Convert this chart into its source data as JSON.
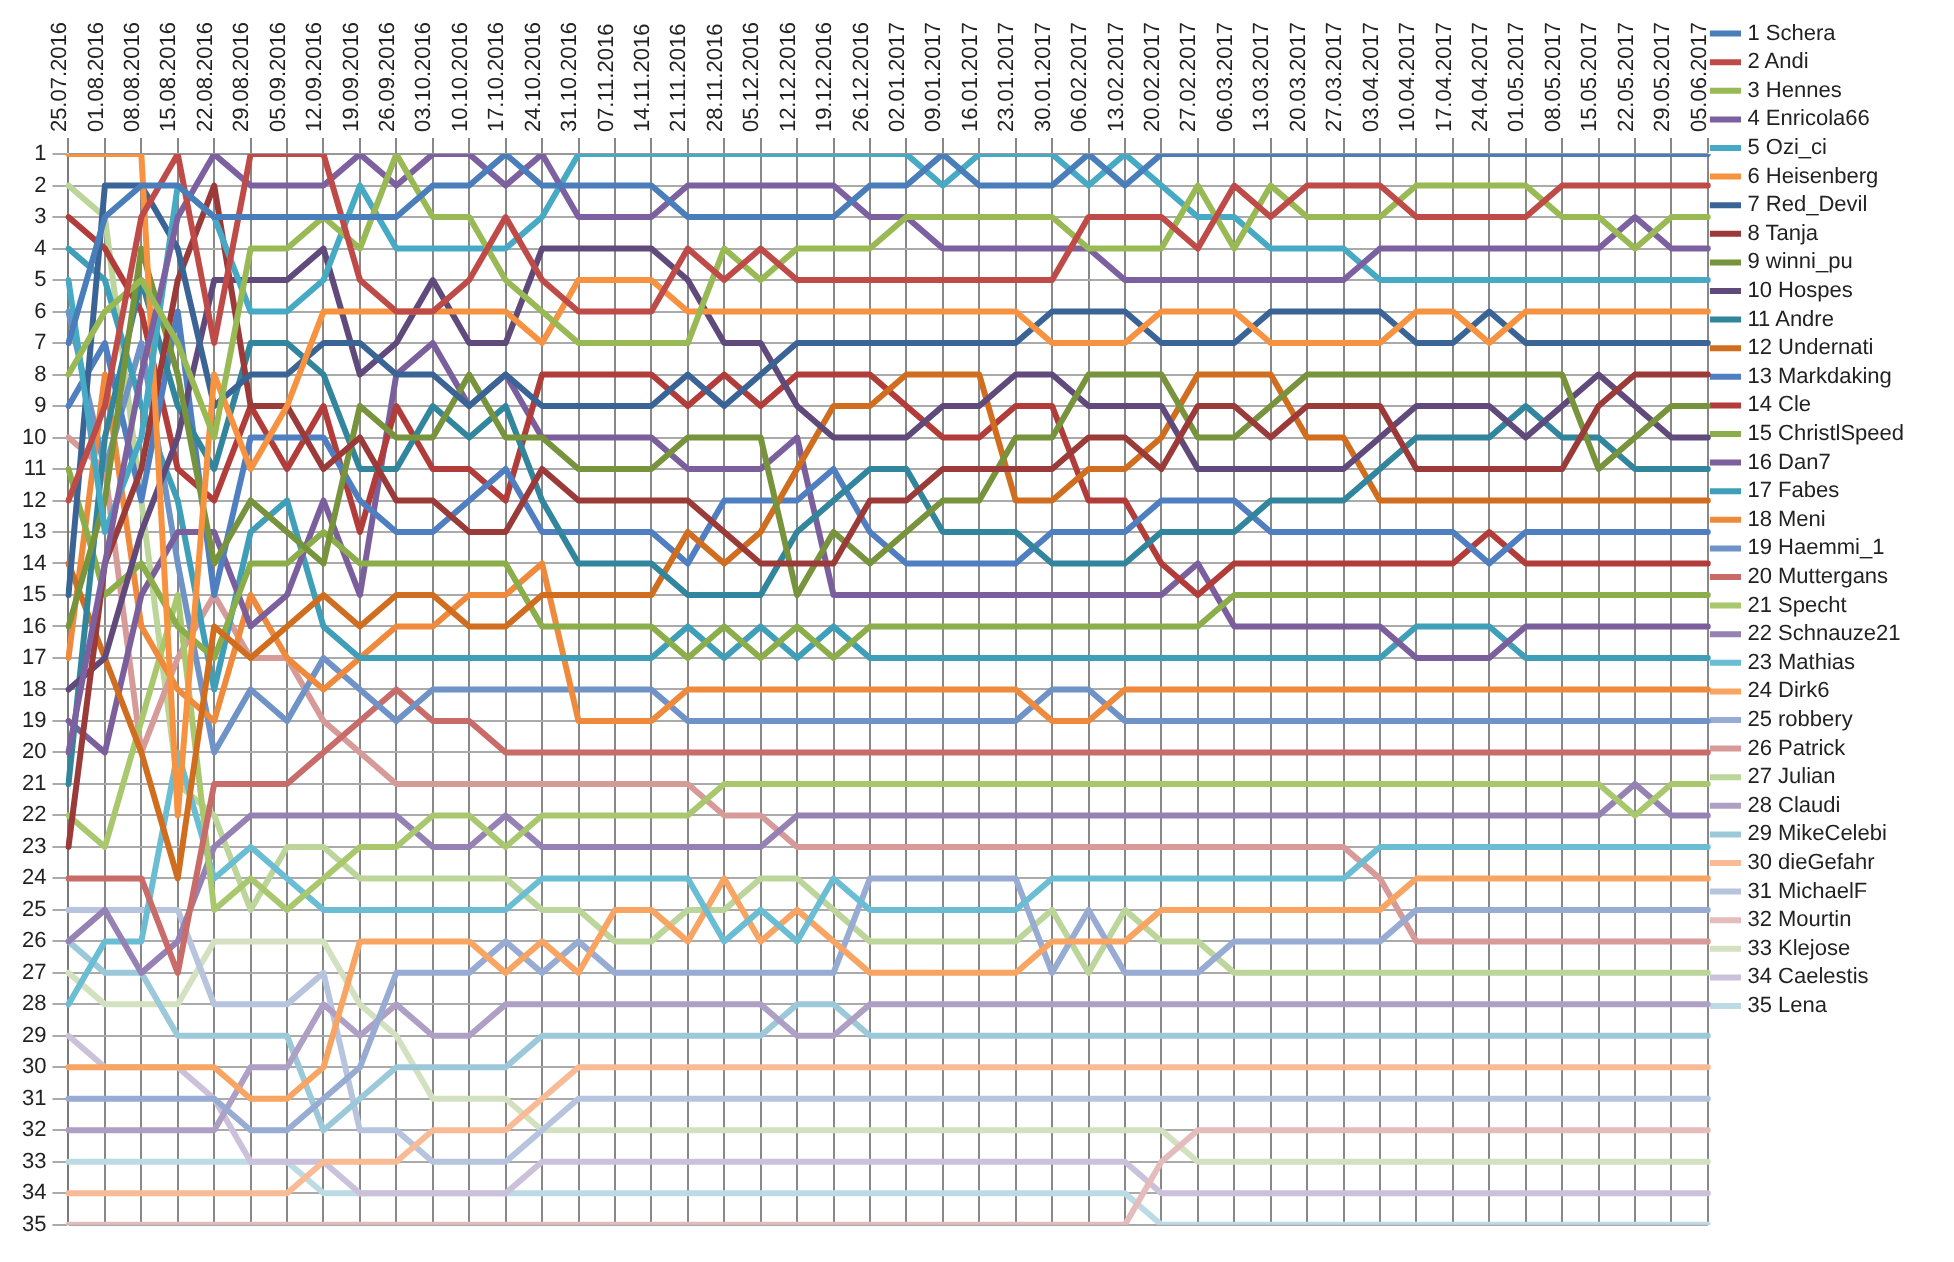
{
  "chart_data": {
    "type": "line",
    "categories": [
      "25.07.2016",
      "01.08.2016",
      "08.08.2016",
      "15.08.2016",
      "22.08.2016",
      "29.08.2016",
      "05.09.2016",
      "12.09.2016",
      "19.09.2016",
      "26.09.2016",
      "03.10.2016",
      "10.10.2016",
      "17.10.2016",
      "24.10.2016",
      "31.10.2016",
      "07.11.2016",
      "14.11.2016",
      "21.11.2016",
      "28.11.2016",
      "05.12.2016",
      "12.12.2016",
      "19.12.2016",
      "26.12.2016",
      "02.01.2017",
      "09.01.2017",
      "16.01.2017",
      "23.01.2017",
      "30.01.2017",
      "06.02.2017",
      "13.02.2017",
      "20.02.2017",
      "27.02.2017",
      "06.03.2017",
      "13.03.2017",
      "20.03.2017",
      "27.03.2017",
      "03.04.2017",
      "10.04.2017",
      "17.04.2017",
      "24.04.2017",
      "01.05.2017",
      "08.05.2017",
      "15.05.2017",
      "22.05.2017",
      "29.05.2017",
      "05.06.2017"
    ],
    "ylim": [
      35,
      1
    ],
    "yticks": [
      1,
      2,
      3,
      4,
      5,
      6,
      7,
      8,
      9,
      10,
      11,
      12,
      13,
      14,
      15,
      16,
      17,
      18,
      19,
      20,
      21,
      22,
      23,
      24,
      25,
      26,
      27,
      28,
      29,
      30,
      31,
      32,
      33,
      34,
      35
    ],
    "grid": true,
    "legend": "right",
    "marker": "none",
    "line_style": "solid",
    "series": [
      {
        "name": "1 Schera",
        "color": "#4a7ebb",
        "values": [
          7,
          3,
          2,
          2,
          3,
          3,
          3,
          3,
          3,
          3,
          2,
          2,
          1,
          2,
          2,
          2,
          2,
          3,
          3,
          3,
          3,
          3,
          2,
          2,
          1,
          2,
          2,
          2,
          1,
          2,
          1,
          1,
          1,
          1,
          1,
          1,
          1,
          1,
          1,
          1,
          1,
          1,
          1,
          1,
          1,
          1
        ]
      },
      {
        "name": "2 Andi",
        "color": "#be4b48",
        "values": [
          12,
          9,
          3,
          1,
          7,
          1,
          1,
          1,
          5,
          6,
          6,
          5,
          3,
          5,
          6,
          6,
          6,
          4,
          5,
          4,
          5,
          5,
          5,
          5,
          5,
          5,
          5,
          5,
          3,
          3,
          3,
          4,
          2,
          3,
          2,
          2,
          2,
          3,
          3,
          3,
          3,
          2,
          2,
          2,
          2,
          2
        ]
      },
      {
        "name": "3 Hennes",
        "color": "#98b954",
        "values": [
          8,
          6,
          5,
          7,
          10,
          4,
          4,
          3,
          4,
          1,
          3,
          3,
          5,
          6,
          7,
          7,
          7,
          7,
          4,
          5,
          4,
          4,
          4,
          3,
          3,
          3,
          3,
          3,
          4,
          4,
          4,
          2,
          4,
          2,
          3,
          3,
          3,
          2,
          2,
          2,
          2,
          3,
          3,
          4,
          3,
          3
        ]
      },
      {
        "name": "4 Enricola66",
        "color": "#7d60a0",
        "values": [
          20,
          14,
          8,
          3,
          1,
          2,
          2,
          2,
          1,
          2,
          1,
          1,
          2,
          1,
          3,
          3,
          3,
          2,
          2,
          2,
          2,
          2,
          3,
          3,
          4,
          4,
          4,
          4,
          4,
          5,
          5,
          5,
          5,
          5,
          5,
          5,
          4,
          4,
          4,
          4,
          4,
          4,
          4,
          3,
          4,
          4
        ]
      },
      {
        "name": "5 Ozi_ci",
        "color": "#46aac5",
        "values": [
          5,
          13,
          10,
          2,
          3,
          6,
          6,
          5,
          2,
          4,
          4,
          4,
          4,
          3,
          1,
          1,
          1,
          1,
          1,
          1,
          1,
          1,
          1,
          1,
          2,
          1,
          1,
          1,
          2,
          1,
          2,
          3,
          3,
          4,
          4,
          4,
          5,
          5,
          5,
          5,
          5,
          5,
          5,
          5,
          5,
          5
        ]
      },
      {
        "name": "6 Heisenberg",
        "color": "#f69240",
        "values": [
          1,
          1,
          1,
          22,
          8,
          11,
          9,
          6,
          6,
          6,
          6,
          6,
          6,
          7,
          5,
          5,
          5,
          6,
          6,
          6,
          6,
          6,
          6,
          6,
          6,
          6,
          6,
          7,
          7,
          7,
          6,
          6,
          6,
          7,
          7,
          7,
          7,
          6,
          6,
          7,
          6,
          6,
          6,
          6,
          6,
          6
        ]
      },
      {
        "name": "7 Red_Devil",
        "color": "#3a6496",
        "values": [
          15,
          2,
          2,
          4,
          9,
          8,
          8,
          7,
          7,
          8,
          8,
          9,
          8,
          9,
          9,
          9,
          9,
          8,
          9,
          8,
          7,
          7,
          7,
          7,
          7,
          7,
          7,
          6,
          6,
          6,
          7,
          7,
          7,
          6,
          6,
          6,
          6,
          7,
          7,
          6,
          7,
          7,
          7,
          7,
          7,
          7
        ]
      },
      {
        "name": "8 Tanja",
        "color": "#9b3b39",
        "values": [
          23,
          14,
          11,
          5,
          2,
          9,
          9,
          11,
          10,
          12,
          12,
          13,
          13,
          11,
          12,
          12,
          12,
          12,
          13,
          14,
          14,
          14,
          12,
          12,
          11,
          11,
          11,
          11,
          10,
          10,
          11,
          9,
          9,
          10,
          9,
          9,
          9,
          11,
          11,
          11,
          11,
          11,
          9,
          8,
          8,
          8
        ]
      },
      {
        "name": "9 winni_pu",
        "color": "#77933c",
        "values": [
          16,
          12,
          4,
          8,
          14,
          12,
          13,
          14,
          9,
          10,
          10,
          8,
          10,
          10,
          11,
          11,
          11,
          10,
          10,
          10,
          15,
          13,
          14,
          13,
          12,
          12,
          10,
          10,
          8,
          8,
          8,
          10,
          10,
          9,
          8,
          8,
          8,
          8,
          8,
          8,
          8,
          8,
          11,
          10,
          9,
          9
        ]
      },
      {
        "name": "10 Hospes",
        "color": "#604a7b",
        "values": [
          18,
          17,
          13,
          10,
          5,
          5,
          5,
          4,
          8,
          7,
          5,
          7,
          7,
          4,
          4,
          4,
          4,
          5,
          7,
          7,
          9,
          10,
          10,
          10,
          9,
          9,
          8,
          8,
          9,
          9,
          9,
          11,
          11,
          11,
          11,
          11,
          10,
          9,
          9,
          9,
          10,
          9,
          8,
          9,
          10,
          10
        ]
      },
      {
        "name": "11 Andre",
        "color": "#31859c",
        "values": [
          21,
          10,
          5,
          9,
          11,
          7,
          7,
          8,
          11,
          11,
          9,
          10,
          9,
          12,
          14,
          14,
          14,
          15,
          15,
          15,
          13,
          12,
          11,
          11,
          13,
          13,
          13,
          14,
          14,
          14,
          13,
          13,
          13,
          12,
          12,
          12,
          11,
          10,
          10,
          10,
          9,
          10,
          10,
          11,
          11,
          11
        ]
      },
      {
        "name": "12 Undernati",
        "color": "#d16d1f",
        "values": [
          14,
          17,
          20,
          24,
          16,
          17,
          16,
          15,
          16,
          15,
          15,
          16,
          16,
          15,
          15,
          15,
          15,
          13,
          14,
          13,
          11,
          9,
          9,
          8,
          8,
          8,
          12,
          12,
          11,
          11,
          10,
          8,
          8,
          8,
          10,
          10,
          12,
          12,
          12,
          12,
          12,
          12,
          12,
          12,
          12,
          12
        ]
      },
      {
        "name": "13 Markdaking",
        "color": "#4f7fc0",
        "values": [
          9,
          7,
          12,
          6,
          15,
          10,
          10,
          10,
          12,
          13,
          13,
          12,
          11,
          13,
          13,
          13,
          13,
          14,
          12,
          12,
          12,
          11,
          13,
          14,
          14,
          14,
          14,
          13,
          13,
          13,
          12,
          12,
          12,
          13,
          13,
          13,
          13,
          13,
          13,
          14,
          13,
          13,
          13,
          13,
          13,
          13
        ]
      },
      {
        "name": "14 Cle",
        "color": "#b23c39",
        "values": [
          3,
          4,
          6,
          11,
          12,
          9,
          11,
          9,
          13,
          9,
          11,
          11,
          12,
          8,
          8,
          8,
          8,
          9,
          8,
          9,
          8,
          8,
          8,
          9,
          10,
          10,
          9,
          9,
          12,
          12,
          14,
          15,
          14,
          14,
          14,
          14,
          14,
          14,
          14,
          13,
          14,
          14,
          14,
          14,
          14,
          14
        ]
      },
      {
        "name": "15 ChristlSpeed",
        "color": "#8bad4a",
        "values": [
          11,
          15,
          14,
          16,
          17,
          14,
          14,
          13,
          14,
          14,
          14,
          14,
          14,
          16,
          16,
          16,
          16,
          17,
          16,
          17,
          16,
          17,
          16,
          16,
          16,
          16,
          16,
          16,
          16,
          16,
          16,
          16,
          15,
          15,
          15,
          15,
          15,
          15,
          15,
          15,
          15,
          15,
          15,
          15,
          15,
          15
        ]
      },
      {
        "name": "16 Dan7",
        "color": "#7b5f9c",
        "values": [
          19,
          20,
          15,
          13,
          13,
          16,
          15,
          12,
          15,
          8,
          7,
          9,
          8,
          10,
          10,
          10,
          10,
          11,
          11,
          11,
          10,
          15,
          15,
          15,
          15,
          15,
          15,
          15,
          15,
          15,
          15,
          14,
          16,
          16,
          16,
          16,
          16,
          17,
          17,
          17,
          16,
          16,
          16,
          16,
          16,
          16
        ]
      },
      {
        "name": "17 Fabes",
        "color": "#3f9fb9",
        "values": [
          4,
          5,
          9,
          12,
          18,
          13,
          12,
          16,
          17,
          17,
          17,
          17,
          17,
          17,
          17,
          17,
          17,
          16,
          17,
          16,
          17,
          16,
          17,
          17,
          17,
          17,
          17,
          17,
          17,
          17,
          17,
          17,
          17,
          17,
          17,
          17,
          17,
          16,
          16,
          16,
          17,
          17,
          17,
          17,
          17,
          17
        ]
      },
      {
        "name": "18 Meni",
        "color": "#ef8a3c",
        "values": [
          17,
          8,
          16,
          18,
          19,
          15,
          17,
          18,
          17,
          16,
          16,
          15,
          15,
          14,
          19,
          19,
          19,
          18,
          18,
          18,
          18,
          18,
          18,
          18,
          18,
          18,
          18,
          19,
          19,
          18,
          18,
          18,
          18,
          18,
          18,
          18,
          18,
          18,
          18,
          18,
          18,
          18,
          18,
          18,
          18,
          18
        ]
      },
      {
        "name": "19 Haemmi_1",
        "color": "#6f93c7",
        "values": [
          6,
          11,
          7,
          14,
          20,
          18,
          19,
          17,
          18,
          19,
          18,
          18,
          18,
          18,
          18,
          18,
          18,
          19,
          19,
          19,
          19,
          19,
          19,
          19,
          19,
          19,
          19,
          18,
          18,
          19,
          19,
          19,
          19,
          19,
          19,
          19,
          19,
          19,
          19,
          19,
          19,
          19,
          19,
          19,
          19,
          19
        ]
      },
      {
        "name": "20 Muttergans",
        "color": "#c86b69",
        "values": [
          24,
          24,
          24,
          27,
          21,
          21,
          21,
          20,
          19,
          18,
          19,
          19,
          20,
          20,
          20,
          20,
          20,
          20,
          20,
          20,
          20,
          20,
          20,
          20,
          20,
          20,
          20,
          20,
          20,
          20,
          20,
          20,
          20,
          20,
          20,
          20,
          20,
          20,
          20,
          20,
          20,
          20,
          20,
          20,
          20,
          20
        ]
      },
      {
        "name": "21 Specht",
        "color": "#a9c86e",
        "values": [
          22,
          23,
          19,
          15,
          25,
          24,
          25,
          24,
          23,
          23,
          22,
          22,
          23,
          22,
          22,
          22,
          22,
          22,
          21,
          21,
          21,
          21,
          21,
          21,
          21,
          21,
          21,
          21,
          21,
          21,
          21,
          21,
          21,
          21,
          21,
          21,
          21,
          21,
          21,
          21,
          21,
          21,
          21,
          22,
          21,
          21
        ]
      },
      {
        "name": "22 Schnauze21",
        "color": "#9681b4",
        "values": [
          26,
          25,
          27,
          26,
          23,
          22,
          22,
          22,
          22,
          22,
          23,
          23,
          22,
          23,
          23,
          23,
          23,
          23,
          23,
          23,
          22,
          22,
          22,
          22,
          22,
          22,
          22,
          22,
          22,
          22,
          22,
          22,
          22,
          22,
          22,
          22,
          22,
          22,
          22,
          22,
          22,
          22,
          22,
          21,
          22,
          22
        ]
      },
      {
        "name": "23 Mathias",
        "color": "#6bbdd3",
        "values": [
          28,
          26,
          26,
          20,
          24,
          23,
          24,
          25,
          25,
          25,
          25,
          25,
          25,
          24,
          24,
          24,
          24,
          24,
          26,
          25,
          26,
          24,
          25,
          25,
          25,
          25,
          25,
          24,
          24,
          24,
          24,
          24,
          24,
          24,
          24,
          24,
          23,
          23,
          23,
          23,
          23,
          23,
          23,
          23,
          23,
          23
        ]
      },
      {
        "name": "24 Dirk6",
        "color": "#f8a463",
        "values": [
          30,
          30,
          30,
          30,
          30,
          31,
          31,
          30,
          26,
          26,
          26,
          26,
          27,
          26,
          27,
          25,
          25,
          26,
          24,
          26,
          25,
          26,
          27,
          27,
          27,
          27,
          27,
          26,
          26,
          26,
          25,
          25,
          25,
          25,
          25,
          25,
          25,
          24,
          24,
          24,
          24,
          24,
          24,
          24,
          24,
          24
        ]
      },
      {
        "name": "25 robbery",
        "color": "#97abd3",
        "values": [
          31,
          31,
          31,
          31,
          31,
          32,
          32,
          31,
          30,
          27,
          27,
          27,
          26,
          27,
          26,
          27,
          27,
          27,
          27,
          27,
          27,
          27,
          24,
          24,
          24,
          24,
          24,
          27,
          25,
          27,
          27,
          27,
          26,
          26,
          26,
          26,
          26,
          25,
          25,
          25,
          25,
          25,
          25,
          25,
          25,
          25
        ]
      },
      {
        "name": "26 Patrick",
        "color": "#d69b99",
        "values": [
          10,
          11,
          20,
          17,
          15,
          17,
          17,
          19,
          20,
          21,
          21,
          21,
          21,
          21,
          21,
          21,
          21,
          21,
          22,
          22,
          23,
          23,
          23,
          23,
          23,
          23,
          23,
          23,
          23,
          23,
          23,
          23,
          23,
          23,
          23,
          23,
          24,
          26,
          26,
          26,
          26,
          26,
          26,
          26,
          26,
          26
        ]
      },
      {
        "name": "27 Julian",
        "color": "#bcd59a",
        "values": [
          2,
          3,
          12,
          21,
          22,
          25,
          23,
          23,
          24,
          24,
          24,
          24,
          24,
          25,
          25,
          26,
          26,
          25,
          25,
          24,
          24,
          25,
          26,
          26,
          26,
          26,
          26,
          25,
          27,
          25,
          26,
          26,
          27,
          27,
          27,
          27,
          27,
          27,
          27,
          27,
          27,
          27,
          27,
          27,
          27,
          27
        ]
      },
      {
        "name": "28 Claudi",
        "color": "#ae9fc4",
        "values": [
          32,
          32,
          32,
          32,
          32,
          30,
          30,
          28,
          29,
          28,
          29,
          29,
          28,
          28,
          28,
          28,
          28,
          28,
          28,
          28,
          29,
          29,
          28,
          28,
          28,
          28,
          28,
          28,
          28,
          28,
          28,
          28,
          28,
          28,
          28,
          28,
          28,
          28,
          28,
          28,
          28,
          28,
          28,
          28,
          28,
          28
        ]
      },
      {
        "name": "29 MikeCelebi",
        "color": "#9cc9d9",
        "values": [
          26,
          27,
          27,
          29,
          29,
          29,
          29,
          32,
          31,
          30,
          30,
          30,
          30,
          29,
          29,
          29,
          29,
          29,
          29,
          29,
          28,
          28,
          29,
          29,
          29,
          29,
          29,
          29,
          29,
          29,
          29,
          29,
          29,
          29,
          29,
          29,
          29,
          29,
          29,
          29,
          29,
          29,
          29,
          29,
          29,
          29
        ]
      },
      {
        "name": "30 dieGefahr",
        "color": "#f8bb95",
        "values": [
          34,
          34,
          34,
          34,
          34,
          34,
          34,
          33,
          33,
          33,
          32,
          32,
          32,
          31,
          30,
          30,
          30,
          30,
          30,
          30,
          30,
          30,
          30,
          30,
          30,
          30,
          30,
          30,
          30,
          30,
          30,
          30,
          30,
          30,
          30,
          30,
          30,
          30,
          30,
          30,
          30,
          30,
          30,
          30,
          30,
          30
        ]
      },
      {
        "name": "31 MichaelF",
        "color": "#b7c4dd",
        "values": [
          25,
          25,
          25,
          25,
          28,
          28,
          28,
          27,
          32,
          32,
          33,
          33,
          33,
          32,
          31,
          31,
          31,
          31,
          31,
          31,
          31,
          31,
          31,
          31,
          31,
          31,
          31,
          31,
          31,
          31,
          31,
          31,
          31,
          31,
          31,
          31,
          31,
          31,
          31,
          31,
          31,
          31,
          31,
          31,
          31,
          31
        ]
      },
      {
        "name": "32 Mourtin",
        "color": "#e3bcbb",
        "values": [
          35,
          35,
          35,
          35,
          35,
          35,
          35,
          35,
          35,
          35,
          35,
          35,
          35,
          35,
          35,
          35,
          35,
          35,
          35,
          35,
          35,
          35,
          35,
          35,
          35,
          35,
          35,
          35,
          35,
          35,
          33,
          32,
          32,
          32,
          32,
          32,
          32,
          32,
          32,
          32,
          32,
          32,
          32,
          32,
          32,
          32
        ]
      },
      {
        "name": "33 Klejose",
        "color": "#d3e1c0",
        "values": [
          27,
          28,
          28,
          28,
          26,
          26,
          26,
          26,
          28,
          29,
          31,
          31,
          31,
          32,
          32,
          32,
          32,
          32,
          32,
          32,
          32,
          32,
          32,
          32,
          32,
          32,
          32,
          32,
          32,
          32,
          32,
          33,
          33,
          33,
          33,
          33,
          33,
          33,
          33,
          33,
          33,
          33,
          33,
          33,
          33,
          33
        ]
      },
      {
        "name": "34 Caelestis",
        "color": "#cbc1da",
        "values": [
          29,
          30,
          30,
          30,
          31,
          33,
          33,
          33,
          34,
          34,
          34,
          34,
          34,
          33,
          33,
          33,
          33,
          33,
          33,
          33,
          33,
          33,
          33,
          33,
          33,
          33,
          33,
          33,
          33,
          33,
          34,
          34,
          34,
          34,
          34,
          34,
          34,
          34,
          34,
          34,
          34,
          34,
          34,
          34,
          34,
          34
        ]
      },
      {
        "name": "35 Lena",
        "color": "#bcdbe5",
        "values": [
          33,
          33,
          33,
          33,
          33,
          33,
          33,
          34,
          34,
          34,
          34,
          34,
          34,
          34,
          34,
          34,
          34,
          34,
          34,
          34,
          34,
          34,
          34,
          34,
          34,
          34,
          34,
          34,
          34,
          34,
          35,
          35,
          35,
          35,
          35,
          35,
          35,
          35,
          35,
          35,
          35,
          35,
          35,
          35,
          35,
          35
        ]
      }
    ]
  }
}
